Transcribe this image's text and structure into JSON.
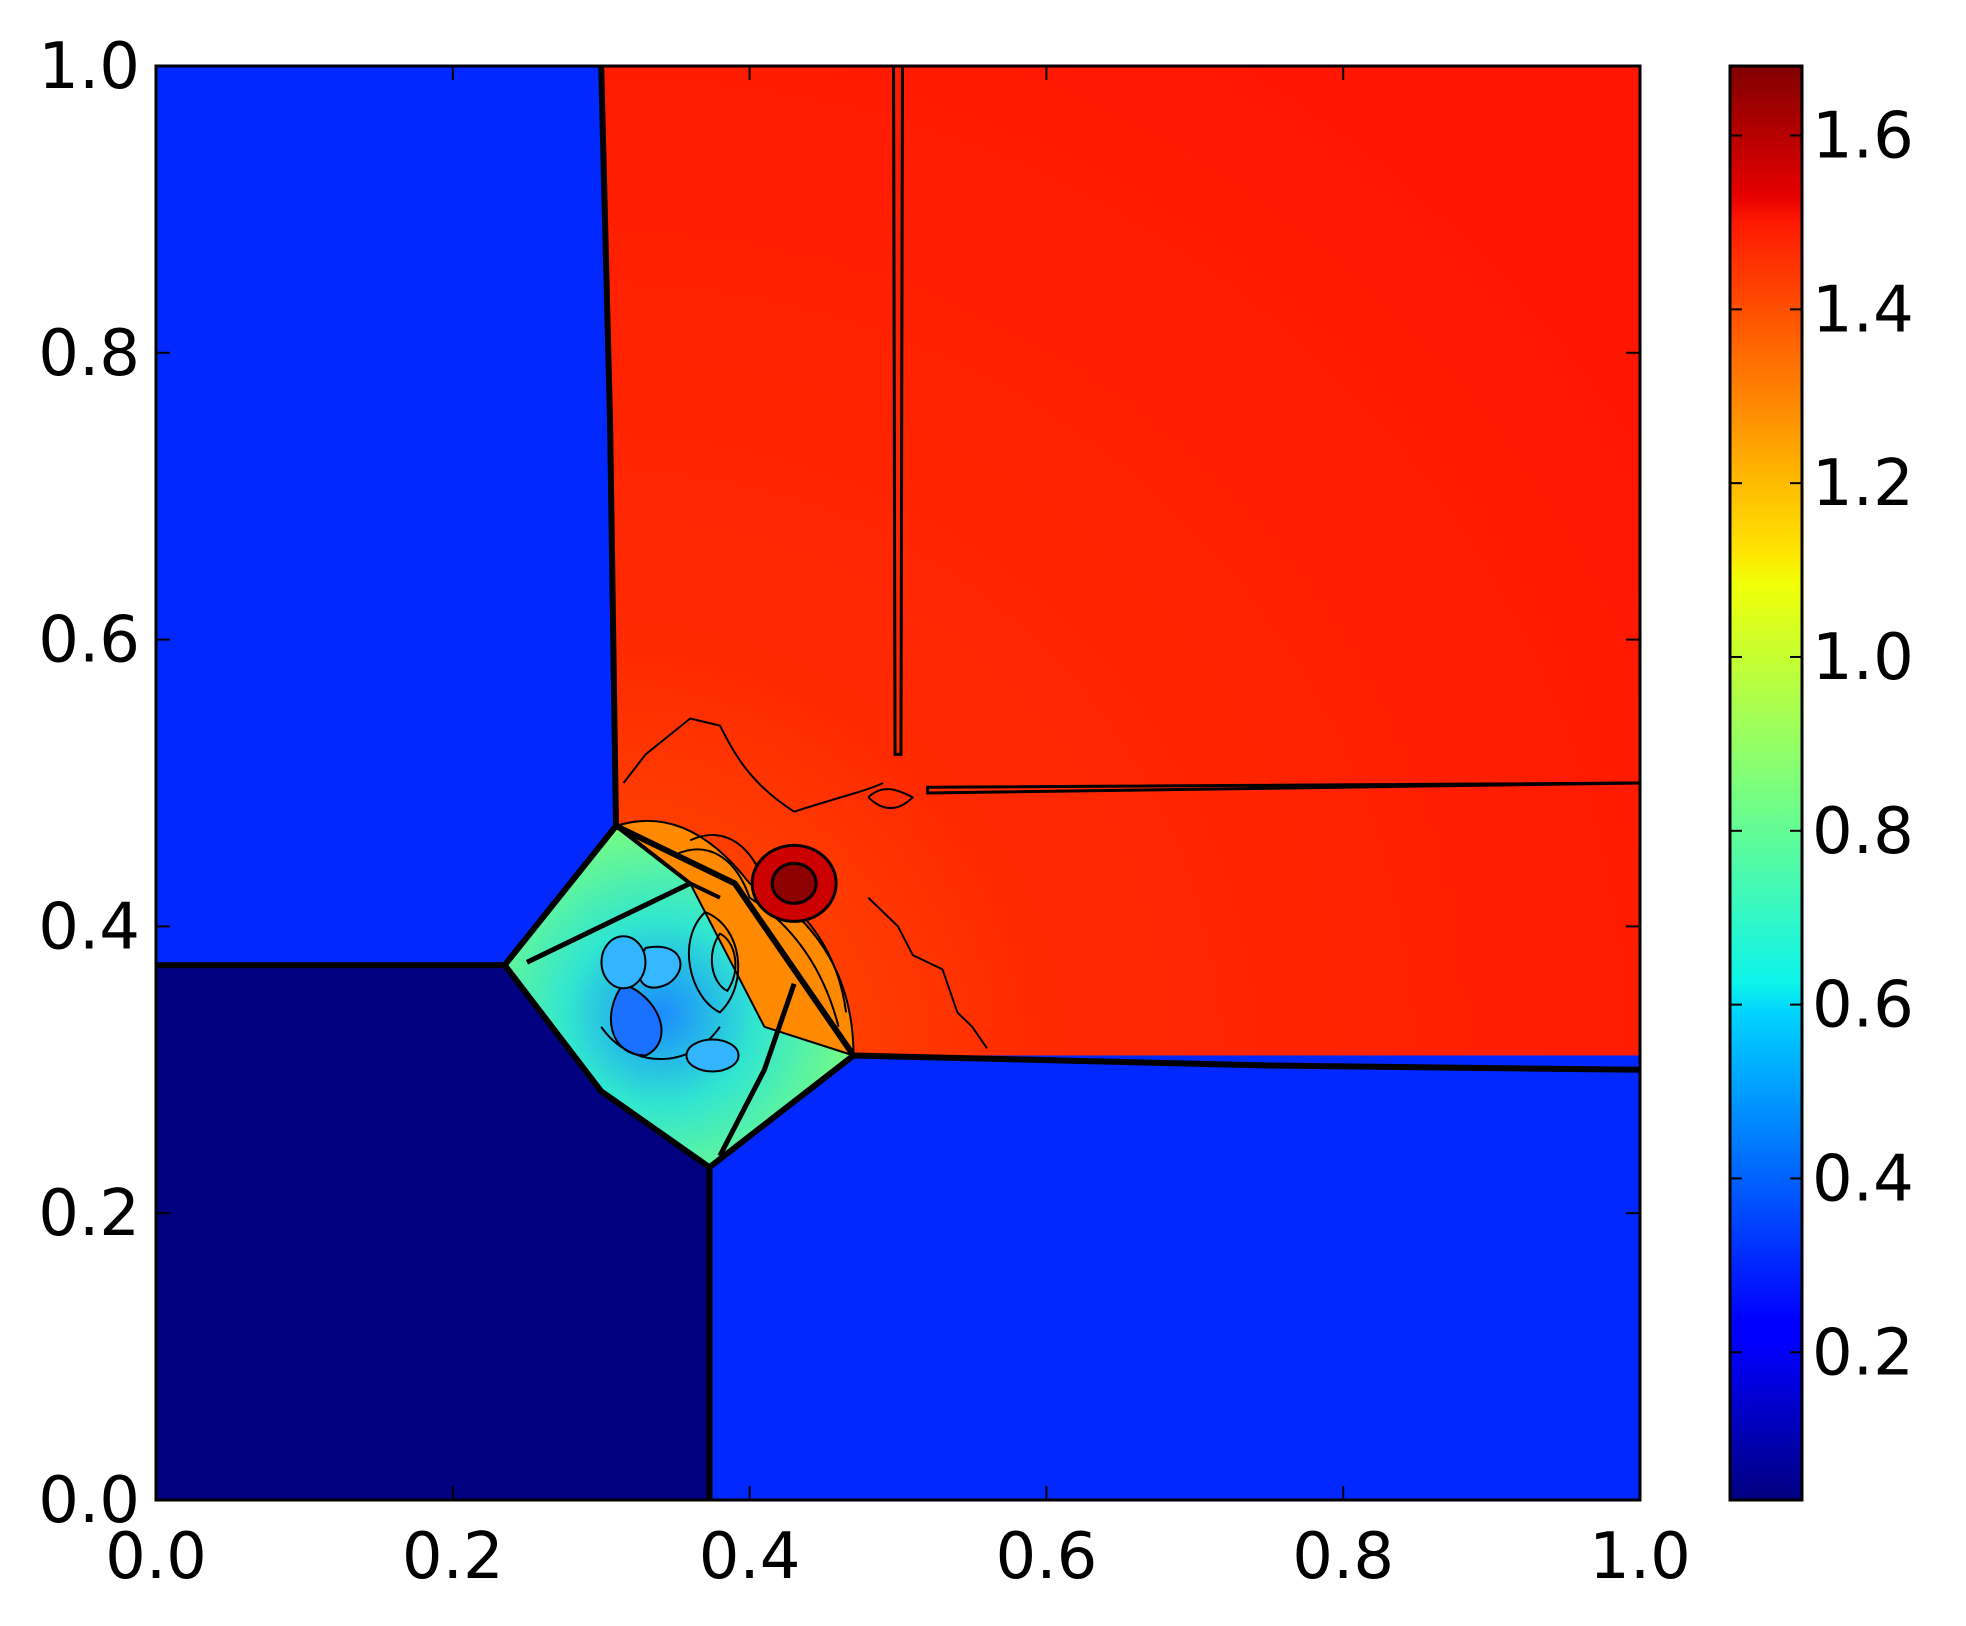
{
  "chart_data": {
    "type": "heatmap",
    "title": "",
    "xlabel": "",
    "ylabel": "",
    "xlim": [
      0.0,
      1.0
    ],
    "ylim": [
      0.0,
      1.0
    ],
    "x_ticks": [
      "0.0",
      "0.2",
      "0.4",
      "0.6",
      "0.8",
      "1.0"
    ],
    "y_ticks": [
      "0.0",
      "0.2",
      "0.4",
      "0.6",
      "0.8",
      "1.0"
    ],
    "grid": false,
    "colormap": "jet",
    "colorbar": {
      "range": [
        0.03,
        1.68
      ],
      "tick_values": [
        0.2,
        0.4,
        0.6,
        0.8,
        1.0,
        1.2,
        1.4,
        1.6
      ],
      "tick_labels": [
        "0.2",
        "0.4",
        "0.6",
        "0.8",
        "1.0",
        "1.2",
        "1.4",
        "1.6"
      ],
      "placement": "right"
    },
    "regions": [
      {
        "name": "top-left",
        "value": 0.3,
        "color": "#0028ff"
      },
      {
        "name": "top-right",
        "value": 1.5,
        "color": "#ff1f00"
      },
      {
        "name": "bottom-left",
        "value": 0.14,
        "color": "#000080"
      },
      {
        "name": "bottom-right",
        "value": 0.3,
        "color": "#0028ff"
      },
      {
        "name": "central-interaction",
        "value": 0.7,
        "color": "#40ffb6"
      }
    ],
    "features": [
      {
        "name": "shock-vertical-left",
        "points": [
          [
            0.3,
            1.0
          ],
          [
            0.306,
            0.75
          ],
          [
            0.31,
            0.47
          ]
        ]
      },
      {
        "name": "shock-horizontal-bottom",
        "points": [
          [
            0.0,
            0.373
          ],
          [
            0.235,
            0.373
          ]
        ]
      },
      {
        "name": "shock-vertical-bottom",
        "points": [
          [
            0.373,
            0.0
          ],
          [
            0.373,
            0.232
          ]
        ]
      },
      {
        "name": "shock-horizontal-right",
        "points": [
          [
            0.47,
            0.31
          ],
          [
            0.75,
            0.303
          ],
          [
            1.0,
            0.3
          ]
        ]
      },
      {
        "name": "contact-vertical",
        "points": [
          [
            0.5,
            1.0
          ],
          [
            0.5,
            0.52
          ]
        ]
      },
      {
        "name": "contact-horizontal",
        "points": [
          [
            0.52,
            0.495
          ],
          [
            1.0,
            0.5
          ]
        ]
      },
      {
        "name": "density-peak",
        "x": 0.43,
        "y": 0.43,
        "value": 1.68
      }
    ]
  }
}
